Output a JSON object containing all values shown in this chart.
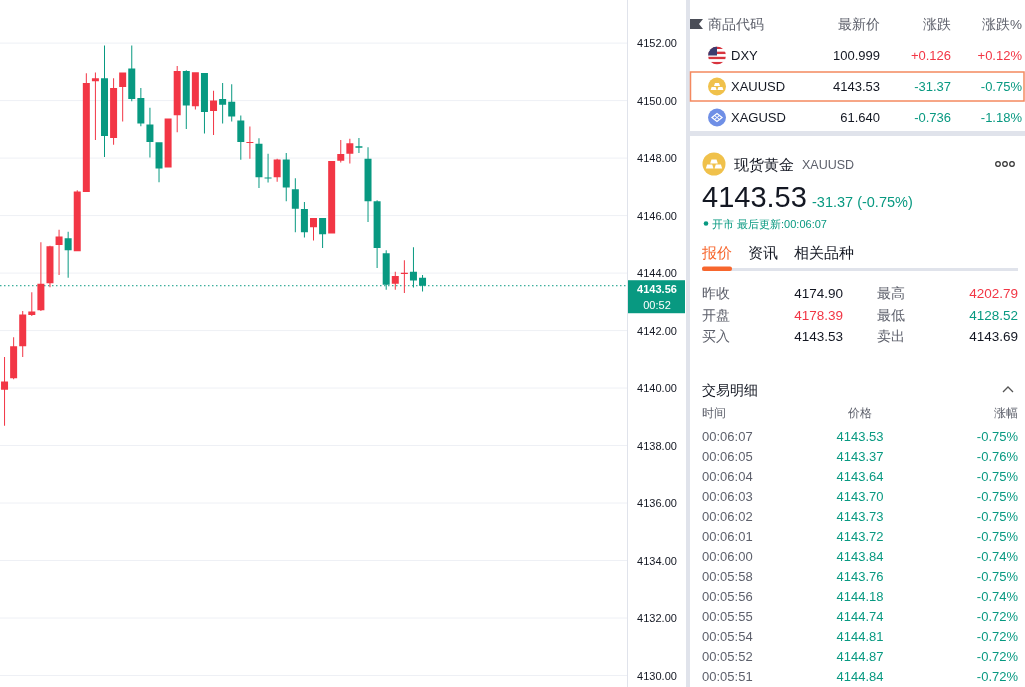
{
  "chart_data": [
    {
      "type": "candlestick",
      "categories": [
        null,
        null,
        null,
        null,
        null,
        null,
        null,
        null,
        null,
        null,
        null,
        null,
        null,
        null,
        null,
        null,
        null,
        null,
        null,
        null,
        null,
        null,
        null,
        null,
        null,
        null,
        null,
        null,
        null,
        null,
        null,
        null,
        null,
        null,
        null,
        null,
        null,
        null,
        null,
        null,
        null,
        null,
        null,
        null,
        null,
        null,
        null,
        null,
        null,
        null,
        null,
        null,
        null,
        null,
        null,
        null,
        null,
        null,
        null,
        null,
        null,
        null,
        null,
        null,
        null,
        null,
        null,
        null,
        null
      ],
      "ohlc": [
        [
          4139.94,
          4141.08,
          4138.69,
          4140.23
        ],
        [
          4140.34,
          4141.77,
          4140.31,
          4141.45
        ],
        [
          4141.45,
          4142.68,
          4141.08,
          4142.56
        ],
        [
          4142.54,
          4143.33,
          4142.51,
          4142.66
        ],
        [
          4142.71,
          4145.07,
          4142.68,
          4143.63
        ],
        [
          4143.65,
          4144.95,
          4143.51,
          4144.93
        ],
        [
          4144.98,
          4145.51,
          4143.93,
          4145.27
        ],
        [
          4145.21,
          4145.44,
          4143.84,
          4144.79
        ],
        [
          4144.76,
          4146.88,
          4144.76,
          4146.84
        ],
        [
          4146.82,
          4150.95,
          4146.82,
          4150.61
        ],
        [
          4150.67,
          4150.98,
          4148.63,
          4150.78
        ],
        [
          4150.78,
          4151.92,
          4148.04,
          4148.77
        ],
        [
          4148.7,
          4150.78,
          4148.46,
          4150.44
        ],
        [
          4150.47,
          4150.98,
          4149.27,
          4150.98
        ],
        [
          4151.12,
          4151.92,
          4149.98,
          4150.06
        ],
        [
          4150.09,
          4150.44,
          4149.11,
          4149.2
        ],
        [
          4149.17,
          4149.75,
          4148.02,
          4148.56
        ],
        [
          4148.55,
          4148.55,
          4147.16,
          4147.64
        ],
        [
          4147.67,
          4149.38,
          4147.67,
          4149.38
        ],
        [
          4149.49,
          4151.2,
          4148.9,
          4151.03
        ],
        [
          4151.03,
          4151.06,
          4149.01,
          4149.83
        ],
        [
          4149.8,
          4150.99,
          4149.69,
          4150.99
        ],
        [
          4150.96,
          4150.96,
          4148.86,
          4149.6
        ],
        [
          4149.64,
          4150.34,
          4148.8,
          4150.0
        ],
        [
          4150.06,
          4150.61,
          4149.2,
          4149.86
        ],
        [
          4149.96,
          4150.57,
          4149.27,
          4149.45
        ],
        [
          4149.31,
          4149.48,
          4147.94,
          4148.56
        ],
        [
          4148.53,
          4149.1,
          4147.98,
          4148.55
        ],
        [
          4148.5,
          4148.69,
          4146.96,
          4147.33
        ],
        [
          4147.32,
          4148.15,
          4147.15,
          4147.3
        ],
        [
          4147.33,
          4147.98,
          4147.18,
          4147.95
        ],
        [
          4147.95,
          4148.18,
          4146.5,
          4146.98
        ],
        [
          4146.92,
          4147.3,
          4145.42,
          4146.24
        ],
        [
          4146.23,
          4146.47,
          4145.24,
          4145.42
        ],
        [
          4145.59,
          4145.92,
          4145.13,
          4145.92
        ],
        [
          4145.92,
          4145.92,
          4144.87,
          4145.35
        ],
        [
          4145.38,
          4147.9,
          4145.38,
          4147.9
        ],
        [
          4147.91,
          4148.63,
          4147.85,
          4148.14
        ],
        [
          4148.15,
          4148.67,
          4147.81,
          4148.52
        ],
        [
          4148.41,
          4148.7,
          4148.18,
          4148.36
        ],
        [
          4147.98,
          4148.38,
          4145.78,
          4146.5
        ],
        [
          4146.5,
          4146.53,
          4144.18,
          4144.87
        ],
        [
          4144.69,
          4144.79,
          4143.42,
          4143.59
        ],
        [
          4143.63,
          4144.05,
          4143.42,
          4143.9
        ],
        [
          4143.97,
          4144.45,
          4143.31,
          4144.01
        ],
        [
          4144.05,
          4144.9,
          4143.5,
          4143.74
        ],
        [
          4143.84,
          4143.93,
          4143.36,
          4143.56
        ],
        null,
        null,
        null,
        null,
        null,
        null,
        null,
        null,
        null,
        null,
        null,
        null,
        null,
        null,
        null,
        null,
        null,
        null,
        null,
        null,
        null,
        null
      ],
      "colors": [
        "#f23645",
        "#f23645",
        "#f23645",
        "#f23645",
        "#f23645",
        "#f23645",
        "#f23645",
        "#089981",
        "#f23645",
        "#f23645",
        "#f23645",
        "#089981",
        "#f23645",
        "#f23645",
        "#089981",
        "#089981",
        "#089981",
        "#089981",
        "#f23645",
        "#f23645",
        "#089981",
        "#f23645",
        "#089981",
        "#f23645",
        "#089981",
        "#089981",
        "#089981",
        "#f23645",
        "#089981",
        "#089981",
        "#f23645",
        "#089981",
        "#089981",
        "#089981",
        "#f23645",
        "#089981",
        "#f23645",
        "#f23645",
        "#f23645",
        "#089981",
        "#089981",
        "#089981",
        "#089981",
        "#f23645",
        "#f23645",
        "#089981",
        "#089981",
        null,
        null,
        null,
        null,
        null,
        null,
        null,
        null,
        null,
        null,
        null,
        null,
        null,
        null,
        null,
        null,
        null,
        null,
        null,
        null,
        null,
        null
      ],
      "ylim": [
        4129.6,
        4153.5
      ],
      "yticks": [
        {
          "value": 4130,
          "label": "4130.00"
        },
        {
          "value": 4132,
          "label": "4132.00"
        },
        {
          "value": 4134,
          "label": "4134.00"
        },
        {
          "value": 4136,
          "label": "4136.00"
        },
        {
          "value": 4138,
          "label": "4138.00"
        },
        {
          "value": 4140,
          "label": "4140.00"
        },
        {
          "value": 4142,
          "label": "4142.00"
        },
        {
          "value": 4144,
          "label": "4144.00"
        },
        {
          "value": 4146,
          "label": "4146.00"
        },
        {
          "value": 4148,
          "label": "4148.00"
        },
        {
          "value": 4150,
          "label": "4150.00"
        },
        {
          "value": 4152,
          "label": "4152.00"
        }
      ],
      "tick_labels": "y",
      "grid": "y",
      "ref_lines": [
        {
          "axis": "y",
          "value": 4143.56,
          "label": "4143.56",
          "color": "#089981",
          "line_style": "dotted"
        }
      ],
      "annotations": [
        "00:52"
      ]
    },
    {
      "type": "other",
      "categories": [
        "商品代码",
        "最新价",
        "涨跌",
        "涨跌%"
      ],
      "annotations": [
        "DXY",
        "100.999",
        "+0.126",
        "+0.12%",
        "XAUUSD",
        "4143.53",
        "-31.37",
        "-0.75%",
        "XAGUSD",
        "61.640",
        "-0.736",
        "-1.18%"
      ],
      "colors": [
        "#131722",
        "#131722",
        "#f23645",
        "#f23645",
        "#131722",
        "#131722",
        "#089981",
        "#089981",
        "#131722",
        "#131722",
        "#089981",
        "#089981"
      ]
    },
    {
      "type": "other",
      "title": "现货黄金",
      "subtitle": "XAUUSD",
      "categories": [
        "报价",
        "资讯",
        "相关品种"
      ],
      "annotations": [
        "4143.53",
        "-31.37 (-0.75%)",
        "开市 最后更新:00:06:07"
      ],
      "colors": [
        "#131722",
        "#089981",
        "#089981"
      ]
    },
    {
      "type": "other",
      "categories": [
        null,
        null,
        null,
        null
      ],
      "annotations": [
        "昨收",
        "4174.90",
        "最高",
        "4202.79",
        "开盘",
        "4178.39",
        "最低",
        "4128.52",
        "买入",
        "4143.53",
        "卖出",
        "4143.69"
      ],
      "colors": [
        "#5d606b",
        "#131722",
        "#5d606b",
        "#f23645",
        "#5d606b",
        "#f23645",
        "#5d606b",
        "#089981",
        "#5d606b",
        "#131722",
        "#5d606b",
        "#131722"
      ]
    },
    {
      "type": "other",
      "title": "交易明细",
      "categories": [
        "时间",
        "价格",
        "涨幅"
      ],
      "annotations": [
        "00:06:07",
        "4143.53",
        "-0.75%",
        "00:06:05",
        "4143.37",
        "-0.76%",
        "00:06:04",
        "4143.64",
        "-0.75%",
        "00:06:03",
        "4143.70",
        "-0.75%",
        "00:06:02",
        "4143.73",
        "-0.75%",
        "00:06:01",
        "4143.72",
        "-0.75%",
        "00:06:00",
        "4143.84",
        "-0.74%",
        "00:05:58",
        "4143.76",
        "-0.75%",
        "00:05:56",
        "4144.18",
        "-0.74%",
        "00:05:55",
        "4144.74",
        "-0.72%",
        "00:05:54",
        "4144.81",
        "-0.72%",
        "00:05:52",
        "4144.87",
        "-0.72%",
        "00:05:51",
        "4144.84",
        "-0.72%"
      ],
      "colors": [
        "#5d606b",
        "#089981",
        "#089981",
        "#5d606b",
        "#089981",
        "#089981",
        "#5d606b",
        "#089981",
        "#089981",
        "#5d606b",
        "#089981",
        "#089981",
        "#5d606b",
        "#089981",
        "#089981",
        "#5d606b",
        "#089981",
        "#089981",
        "#5d606b",
        "#089981",
        "#089981",
        "#5d606b",
        "#089981",
        "#089981",
        "#5d606b",
        "#089981",
        "#089981",
        "#5d606b",
        "#089981",
        "#089981",
        "#5d606b",
        "#089981",
        "#089981",
        "#5d606b",
        "#089981",
        "#089981",
        "#5d606b",
        "#089981",
        "#089981"
      ]
    }
  ]
}
